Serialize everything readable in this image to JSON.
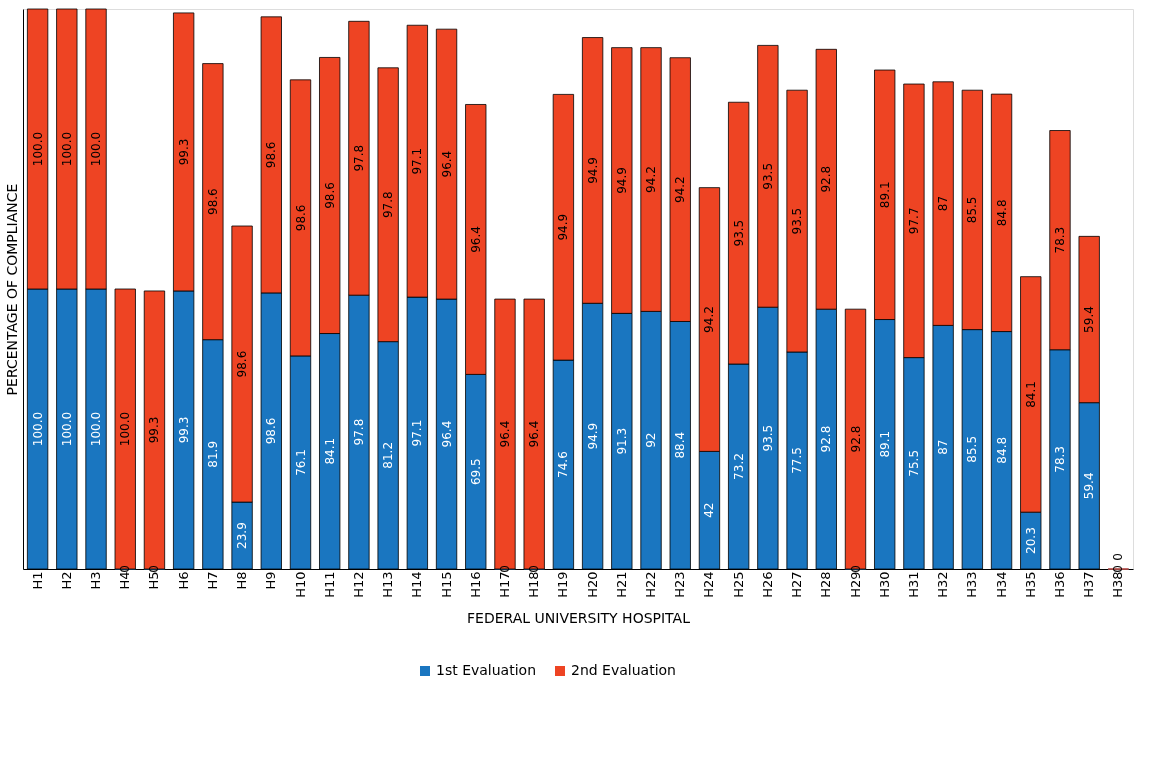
{
  "chart_data": {
    "type": "bar",
    "stacked": true,
    "grid": false,
    "legend": "bottom",
    "xlabel": "FEDERAL UNIVERSITY HOSPITAL",
    "ylabel": "PERCENTAGE OF COMPLIANCE",
    "categories": [
      "H1",
      "H2",
      "H3",
      "H4",
      "H5",
      "H6",
      "H7",
      "H8",
      "H9",
      "H10",
      "H11",
      "H12",
      "H13",
      "H14",
      "H15",
      "H16",
      "H17",
      "H18",
      "H19",
      "H20",
      "H21",
      "H22",
      "H23",
      "H24",
      "H25",
      "H26",
      "H27",
      "H28",
      "H29",
      "H30",
      "H31",
      "H32",
      "H33",
      "H34",
      "H35",
      "H36",
      "H37",
      "H38"
    ],
    "series": [
      {
        "name": "1st Evaluation",
        "color": "#1a76c0",
        "values": [
          100.0,
          100.0,
          100.0,
          0,
          0,
          99.3,
          81.9,
          23.9,
          98.6,
          76.1,
          84.1,
          97.8,
          81.2,
          97.1,
          96.4,
          69.5,
          0,
          0,
          74.6,
          94.9,
          91.3,
          92,
          88.4,
          42,
          73.2,
          93.5,
          77.5,
          92.8,
          0,
          89.1,
          75.5,
          87,
          85.5,
          84.8,
          20.3,
          78.3,
          59.4,
          0
        ],
        "value_labels": [
          "100.0",
          "100.0",
          "100.0",
          "0",
          "0",
          "99.3",
          "81.9",
          "23.9",
          "98.6",
          "76.1",
          "84.1",
          "97.8",
          "81.2",
          "97.1",
          "96.4",
          "69.5",
          "0",
          "0",
          "74.6",
          "94.9",
          "91.3",
          "92",
          "88.4",
          "42",
          "73.2",
          "93.5",
          "77.5",
          "92.8",
          "0",
          "89.1",
          "75.5",
          "87",
          "85.5",
          "84.8",
          "20.3",
          "78.3",
          "59.4",
          "0"
        ]
      },
      {
        "name": "2nd Evaluation",
        "color": "#ee4423",
        "values": [
          100.0,
          100.0,
          100.0,
          100.0,
          99.3,
          99.3,
          98.6,
          98.6,
          98.6,
          98.6,
          98.6,
          97.8,
          97.8,
          97.1,
          96.4,
          96.4,
          96.4,
          96.4,
          94.9,
          94.9,
          94.9,
          94.2,
          94.2,
          94.2,
          93.5,
          93.5,
          93.5,
          92.8,
          92.8,
          89.1,
          97.7,
          87,
          85.5,
          84.8,
          84.1,
          78.3,
          59.4,
          0
        ],
        "value_labels": [
          "100.0",
          "100.0",
          "100.0",
          "100.0",
          "99.3",
          "99.3",
          "98.6",
          "98.6",
          "98.6",
          "98.6",
          "98.6",
          "97.8",
          "97.8",
          "97.1",
          "96.4",
          "96.4",
          "96.4",
          "96.4",
          "94.9",
          "94.9",
          "94.9",
          "94.2",
          "94.2",
          "94.2",
          "93.5",
          "93.5",
          "93.5",
          "92.8",
          "92.8",
          "89.1",
          "97.7",
          "87",
          "85.5",
          "84.8",
          "84.1",
          "78.3",
          "59.4",
          "0"
        ]
      }
    ]
  }
}
